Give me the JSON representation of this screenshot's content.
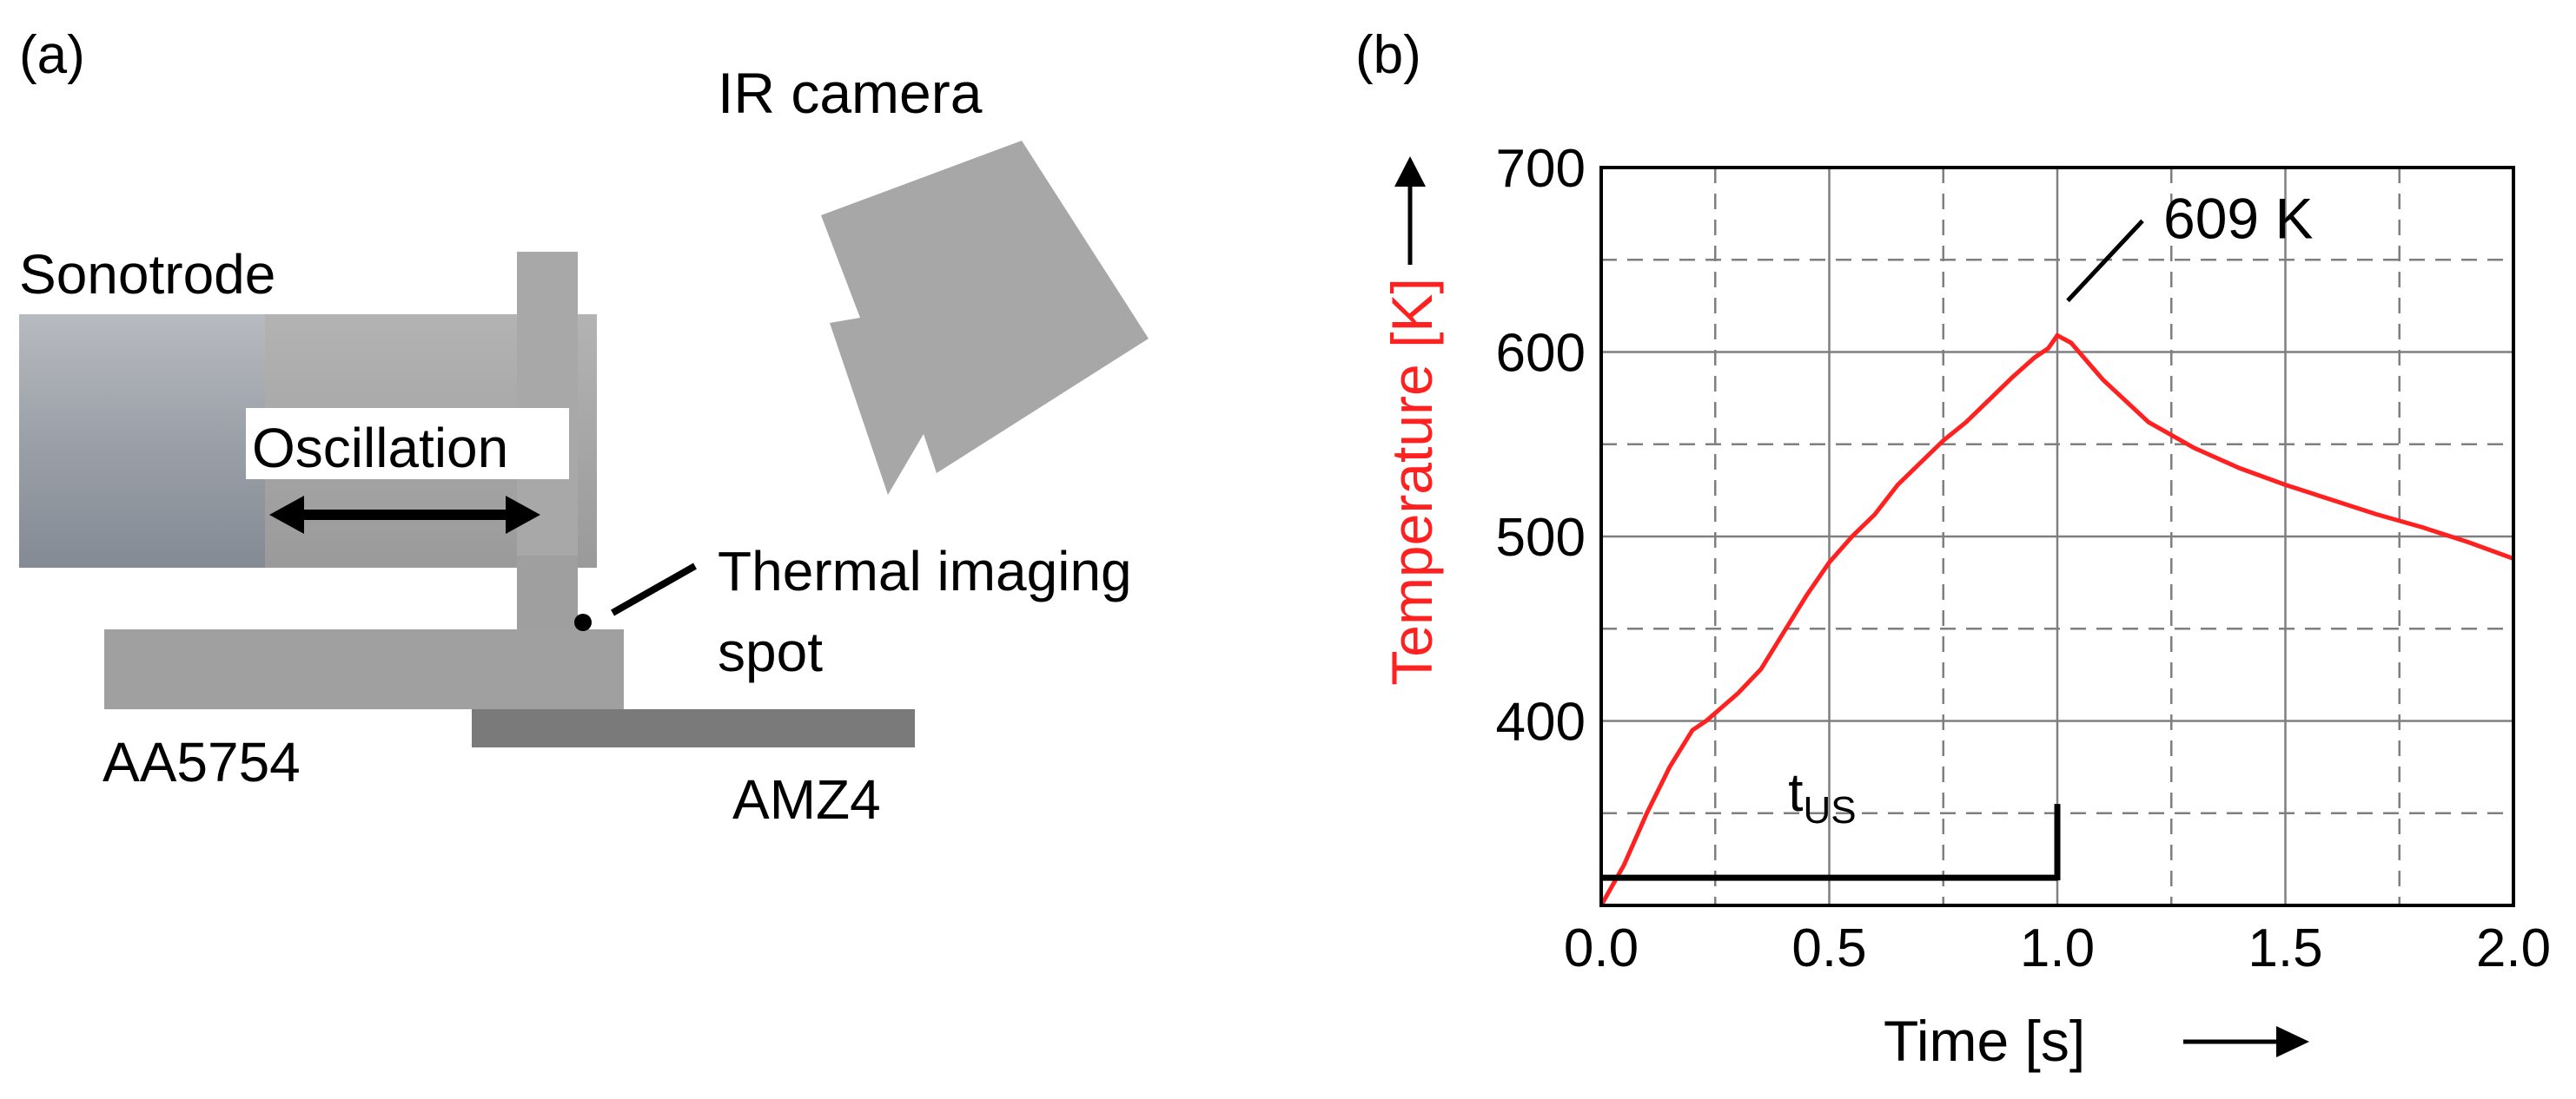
{
  "panel_a": {
    "label": "(a)",
    "ir_camera_label": "IR camera",
    "sonotrode_label": "Sonotrode",
    "oscillation_label": "Oscillation",
    "thermal_spot_label_line1": "Thermal imaging",
    "thermal_spot_label_line2": "spot",
    "upper_sheet_label": "AA5754",
    "lower_sheet_label": "AMZ4"
  },
  "panel_b": {
    "label": "(b)",
    "peak_label": "609 K",
    "tus_label_main": "t",
    "tus_label_sub": "US"
  },
  "chart_data": {
    "type": "line",
    "xlabel": "Time [s]",
    "ylabel": "Temperature [K]",
    "xlim": [
      0,
      2.0
    ],
    "ylim": [
      300,
      700
    ],
    "xticks": [
      "0.0",
      "0.5",
      "1.0",
      "1.5",
      "2.0"
    ],
    "yticks": [
      "400",
      "500",
      "600",
      "700"
    ],
    "grid": true,
    "colors": {
      "line": "#ff2020",
      "ylabel": "#ff2020",
      "axis": "#000000"
    },
    "series": [
      {
        "x": [
          0.0,
          0.05,
          0.1,
          0.15,
          0.2,
          0.23,
          0.3,
          0.35,
          0.4,
          0.45,
          0.5,
          0.55,
          0.6,
          0.65,
          0.7,
          0.75,
          0.8,
          0.85,
          0.9,
          0.95,
          0.98,
          1.0,
          1.03,
          1.1,
          1.2,
          1.3,
          1.4,
          1.5,
          1.6,
          1.7,
          1.8,
          1.9,
          2.0
        ],
        "y": [
          300,
          322,
          350,
          375,
          395,
          400,
          415,
          428,
          448,
          468,
          486,
          500,
          512,
          528,
          540,
          552,
          562,
          574,
          586,
          597,
          602,
          609,
          605,
          585,
          562,
          548,
          537,
          528,
          520,
          512,
          505,
          497,
          488
        ]
      }
    ],
    "annotations": {
      "peak": {
        "x": 1.0,
        "y": 609
      },
      "tus_bar": {
        "x_start": 0.0,
        "x_end": 1.0,
        "y": 315,
        "marker_top_y": 355
      }
    }
  }
}
